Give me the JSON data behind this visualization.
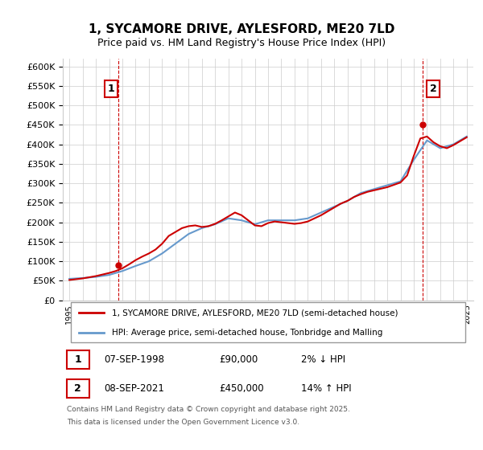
{
  "title": "1, SYCAMORE DRIVE, AYLESFORD, ME20 7LD",
  "subtitle": "Price paid vs. HM Land Registry's House Price Index (HPI)",
  "legend_line1": "1, SYCAMORE DRIVE, AYLESFORD, ME20 7LD (semi-detached house)",
  "legend_line2": "HPI: Average price, semi-detached house, Tonbridge and Malling",
  "footer1": "Contains HM Land Registry data © Crown copyright and database right 2025.",
  "footer2": "This data is licensed under the Open Government Licence v3.0.",
  "annotation1": {
    "label": "1",
    "date": "07-SEP-1998",
    "price": "£90,000",
    "hpi": "2% ↓ HPI"
  },
  "annotation2": {
    "label": "2",
    "date": "08-SEP-2021",
    "price": "£450,000",
    "hpi": "14% ↑ HPI"
  },
  "ylabel": "",
  "ylim": [
    0,
    620000
  ],
  "yticks": [
    0,
    50000,
    100000,
    150000,
    200000,
    250000,
    300000,
    350000,
    400000,
    450000,
    500000,
    550000,
    600000
  ],
  "line_color_red": "#cc0000",
  "line_color_blue": "#6699cc",
  "vline_color": "#cc0000",
  "background_color": "#ffffff",
  "grid_color": "#cccccc",
  "hpi_data": {
    "years": [
      1995,
      1996,
      1997,
      1998,
      1999,
      2000,
      2001,
      2002,
      2003,
      2004,
      2005,
      2006,
      2007,
      2008,
      2009,
      2010,
      2011,
      2012,
      2013,
      2014,
      2015,
      2016,
      2017,
      2018,
      2019,
      2020,
      2021,
      2022,
      2023,
      2024,
      2025
    ],
    "values": [
      55000,
      57000,
      60000,
      65000,
      75000,
      88000,
      100000,
      120000,
      145000,
      170000,
      185000,
      195000,
      210000,
      205000,
      195000,
      205000,
      205000,
      205000,
      210000,
      225000,
      240000,
      255000,
      275000,
      285000,
      295000,
      305000,
      360000,
      410000,
      390000,
      400000,
      420000
    ]
  },
  "price_data": {
    "years": [
      1995.0,
      1995.5,
      1996.0,
      1996.5,
      1997.0,
      1997.5,
      1998.0,
      1998.5,
      1999.0,
      1999.5,
      2000.0,
      2000.5,
      2001.0,
      2001.5,
      2002.0,
      2002.5,
      2003.0,
      2003.5,
      2004.0,
      2004.5,
      2005.0,
      2005.5,
      2006.0,
      2006.5,
      2007.0,
      2007.5,
      2008.0,
      2008.5,
      2009.0,
      2009.5,
      2010.0,
      2010.5,
      2011.0,
      2011.5,
      2012.0,
      2012.5,
      2013.0,
      2013.5,
      2014.0,
      2014.5,
      2015.0,
      2015.5,
      2016.0,
      2016.5,
      2017.0,
      2017.5,
      2018.0,
      2018.5,
      2019.0,
      2019.5,
      2020.0,
      2020.5,
      2021.0,
      2021.5,
      2022.0,
      2022.5,
      2023.0,
      2023.5,
      2024.0,
      2024.5,
      2025.0
    ],
    "values": [
      52000,
      54000,
      56000,
      59000,
      62000,
      66000,
      70000,
      75000,
      82000,
      92000,
      103000,
      112000,
      120000,
      130000,
      145000,
      165000,
      175000,
      185000,
      190000,
      192000,
      188000,
      190000,
      196000,
      205000,
      215000,
      225000,
      218000,
      205000,
      192000,
      190000,
      198000,
      202000,
      200000,
      198000,
      196000,
      198000,
      202000,
      210000,
      218000,
      228000,
      238000,
      248000,
      255000,
      265000,
      272000,
      278000,
      282000,
      286000,
      290000,
      296000,
      302000,
      320000,
      370000,
      415000,
      420000,
      405000,
      395000,
      390000,
      398000,
      408000,
      418000
    ]
  },
  "sale1_year": 1998.69,
  "sale1_price": 90000,
  "sale2_year": 2021.69,
  "sale2_price": 450000,
  "xlim_start": 1994.5,
  "xlim_end": 2025.5
}
